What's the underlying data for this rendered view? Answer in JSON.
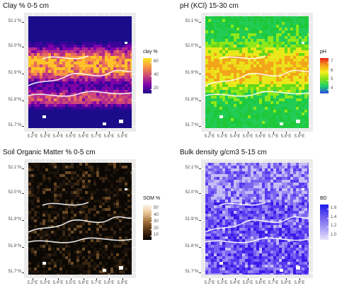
{
  "panels": [
    {
      "title": "Clay % 0-5 cm",
      "legend_title": "clay %",
      "legend_ticks": [
        "60",
        "40",
        "20"
      ],
      "gradient": [
        "#fde725",
        "#f89540",
        "#cc4778",
        "#7e03a8",
        "#1b0c8a"
      ],
      "map_palette": "clay"
    },
    {
      "title": "pH (KCl) 15-30 cm",
      "legend_title": "pH",
      "legend_ticks": [
        "7",
        "6",
        "5",
        "4"
      ],
      "gradient": [
        "#e8201a",
        "#f59a1a",
        "#f5f01a",
        "#7ee01a",
        "#1ad070",
        "#2a4ae0"
      ],
      "map_palette": "ph"
    },
    {
      "title": "Soil Organic Matter % 0-5 cm",
      "legend_title": "SOM %",
      "legend_ticks": [
        "50",
        "40",
        "30",
        "20",
        "10"
      ],
      "gradient": [
        "#fff8ea",
        "#e5c28f",
        "#9c6b36",
        "#4a2c10",
        "#050301"
      ],
      "map_palette": "som"
    },
    {
      "title": "Bulk density g/cm3 5-15 cm",
      "legend_title": "BD",
      "legend_ticks": [
        "1.6",
        "1.4",
        "1.2",
        "1.0"
      ],
      "gradient": [
        "#1a1ae8",
        "#6a5af0",
        "#a89cf5",
        "#e8e4fc"
      ],
      "map_palette": "bd"
    }
  ],
  "axes": {
    "y_labels": [
      "52.1°N",
      "52.0°N",
      "51.9°N",
      "51.8°N",
      "51.7°N"
    ],
    "x_labels": [
      "5.2°E",
      "5.3°E",
      "5.4°E",
      "5.5°E",
      "5.6°E",
      "5.7°E",
      "5.8°E",
      "5.9°E"
    ]
  }
}
